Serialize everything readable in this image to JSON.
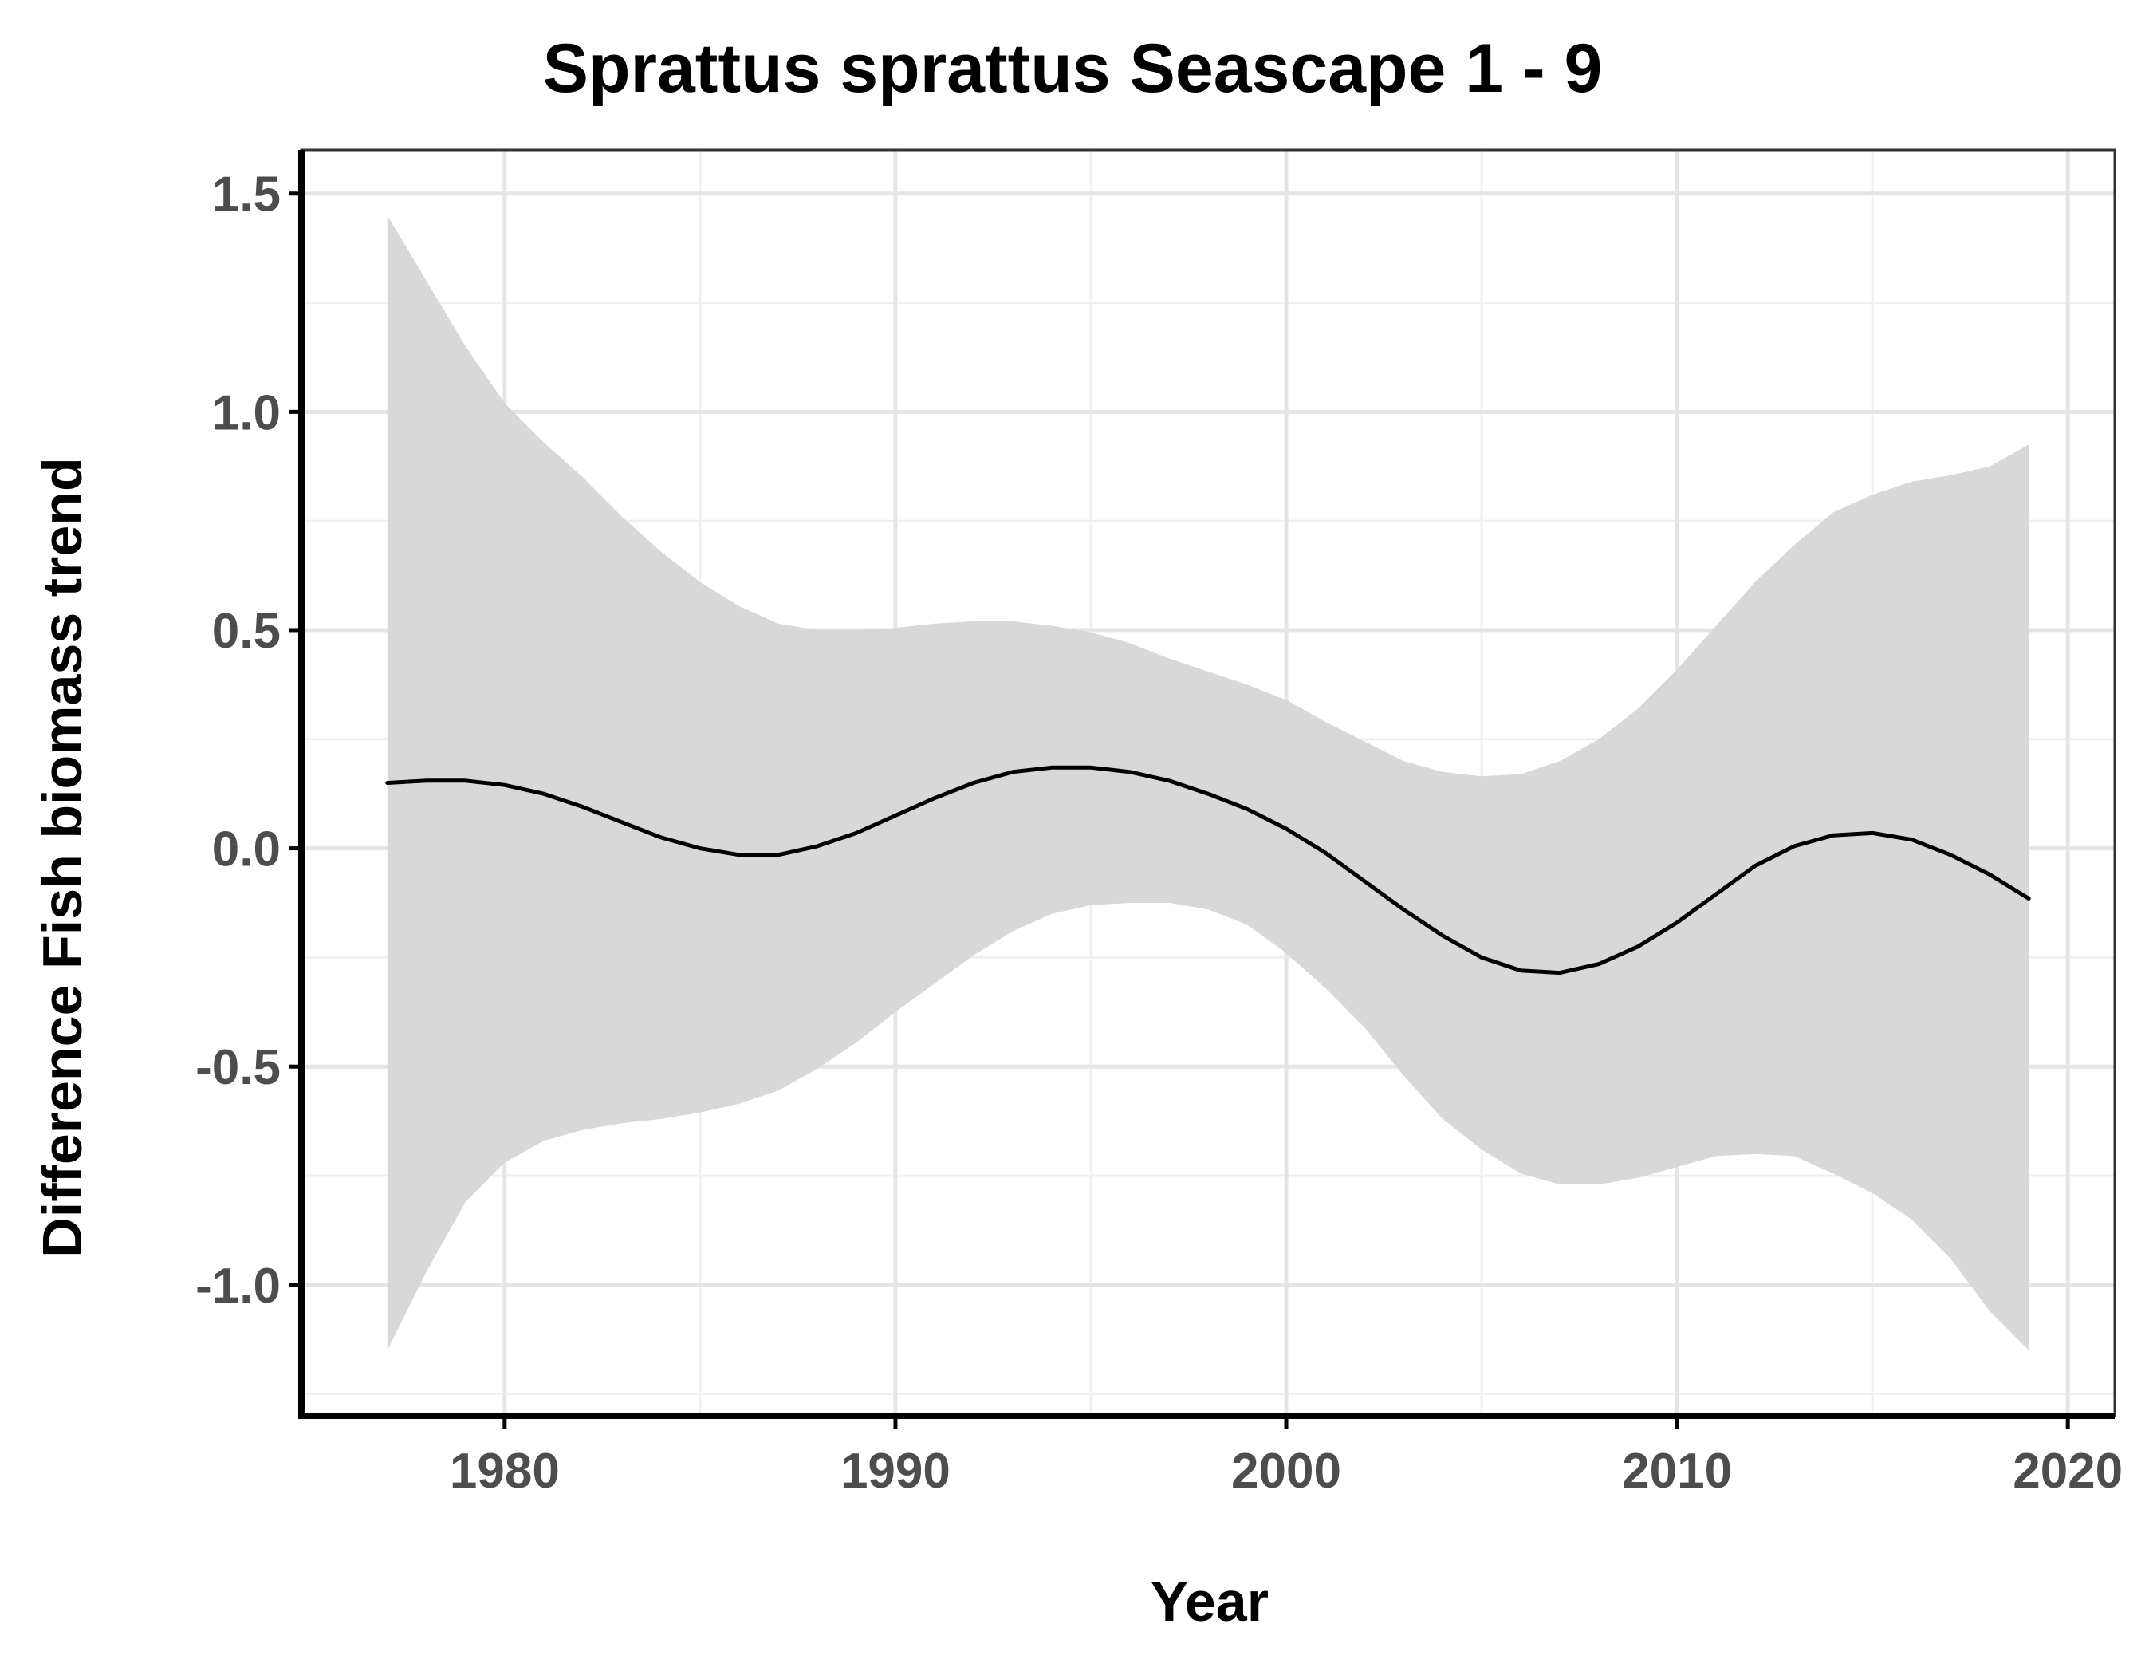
{
  "chart_data": {
    "type": "line",
    "title": "Sprattus sprattus Seascape 1 - 9",
    "xlabel": "Year",
    "ylabel": "Difference Fish biomass trend",
    "xlim": [
      1974.8,
      2021.2
    ],
    "ylim": [
      -1.3,
      1.6
    ],
    "x_ticks": [
      1980,
      1990,
      2000,
      2010,
      2020
    ],
    "x_tick_labels": [
      "1980",
      "1990",
      "2000",
      "2010",
      "2020"
    ],
    "y_ticks": [
      -1.0,
      -0.5,
      0.0,
      0.5,
      1.0,
      1.5
    ],
    "y_tick_labels": [
      "-1.0",
      "-0.5",
      "0.0",
      "0.5",
      "1.0",
      "1.5"
    ],
    "grid": true,
    "legend": "none",
    "colors": {
      "line": "#000000",
      "band": "#d6d6d6",
      "grid_major": "#e5e5e5",
      "grid_minor": "#f0f0f0",
      "axis": "#000000",
      "tick_label": "#4d4d4d"
    },
    "series": [
      {
        "x": [
          1977,
          1978,
          1979,
          1980,
          1981,
          1982,
          1983,
          1984,
          1985,
          1986,
          1987,
          1988,
          1989,
          1990,
          1991,
          1992,
          1993,
          1994,
          1995,
          1996,
          1997,
          1998,
          1999,
          2000,
          2001,
          2002,
          2003,
          2004,
          2005,
          2006,
          2007,
          2008,
          2009,
          2010,
          2011,
          2012,
          2013,
          2014,
          2015,
          2016,
          2017,
          2018,
          2019
        ],
        "values": [
          0.15,
          0.155,
          0.155,
          0.145,
          0.125,
          0.095,
          0.06,
          0.025,
          0.0,
          -0.015,
          -0.015,
          0.005,
          0.035,
          0.075,
          0.115,
          0.15,
          0.175,
          0.185,
          0.185,
          0.175,
          0.155,
          0.125,
          0.09,
          0.045,
          -0.01,
          -0.075,
          -0.14,
          -0.2,
          -0.25,
          -0.28,
          -0.285,
          -0.265,
          -0.225,
          -0.17,
          -0.105,
          -0.04,
          0.005,
          0.03,
          0.035,
          0.02,
          -0.015,
          -0.06,
          -0.115
        ],
        "upper": [
          1.45,
          1.3,
          1.15,
          1.02,
          0.93,
          0.85,
          0.76,
          0.68,
          0.61,
          0.555,
          0.515,
          0.5,
          0.5,
          0.505,
          0.515,
          0.52,
          0.52,
          0.51,
          0.495,
          0.47,
          0.435,
          0.405,
          0.375,
          0.34,
          0.29,
          0.245,
          0.2,
          0.175,
          0.165,
          0.17,
          0.2,
          0.25,
          0.32,
          0.41,
          0.51,
          0.61,
          0.695,
          0.77,
          0.81,
          0.84,
          0.855,
          0.875,
          0.925
        ],
        "lower": [
          -1.15,
          -0.97,
          -0.81,
          -0.72,
          -0.67,
          -0.645,
          -0.63,
          -0.62,
          -0.605,
          -0.585,
          -0.555,
          -0.505,
          -0.445,
          -0.375,
          -0.31,
          -0.245,
          -0.19,
          -0.15,
          -0.13,
          -0.125,
          -0.125,
          -0.14,
          -0.175,
          -0.24,
          -0.32,
          -0.41,
          -0.52,
          -0.62,
          -0.69,
          -0.745,
          -0.77,
          -0.77,
          -0.755,
          -0.73,
          -0.705,
          -0.7,
          -0.705,
          -0.745,
          -0.79,
          -0.85,
          -0.94,
          -1.06,
          -1.15
        ]
      }
    ]
  }
}
